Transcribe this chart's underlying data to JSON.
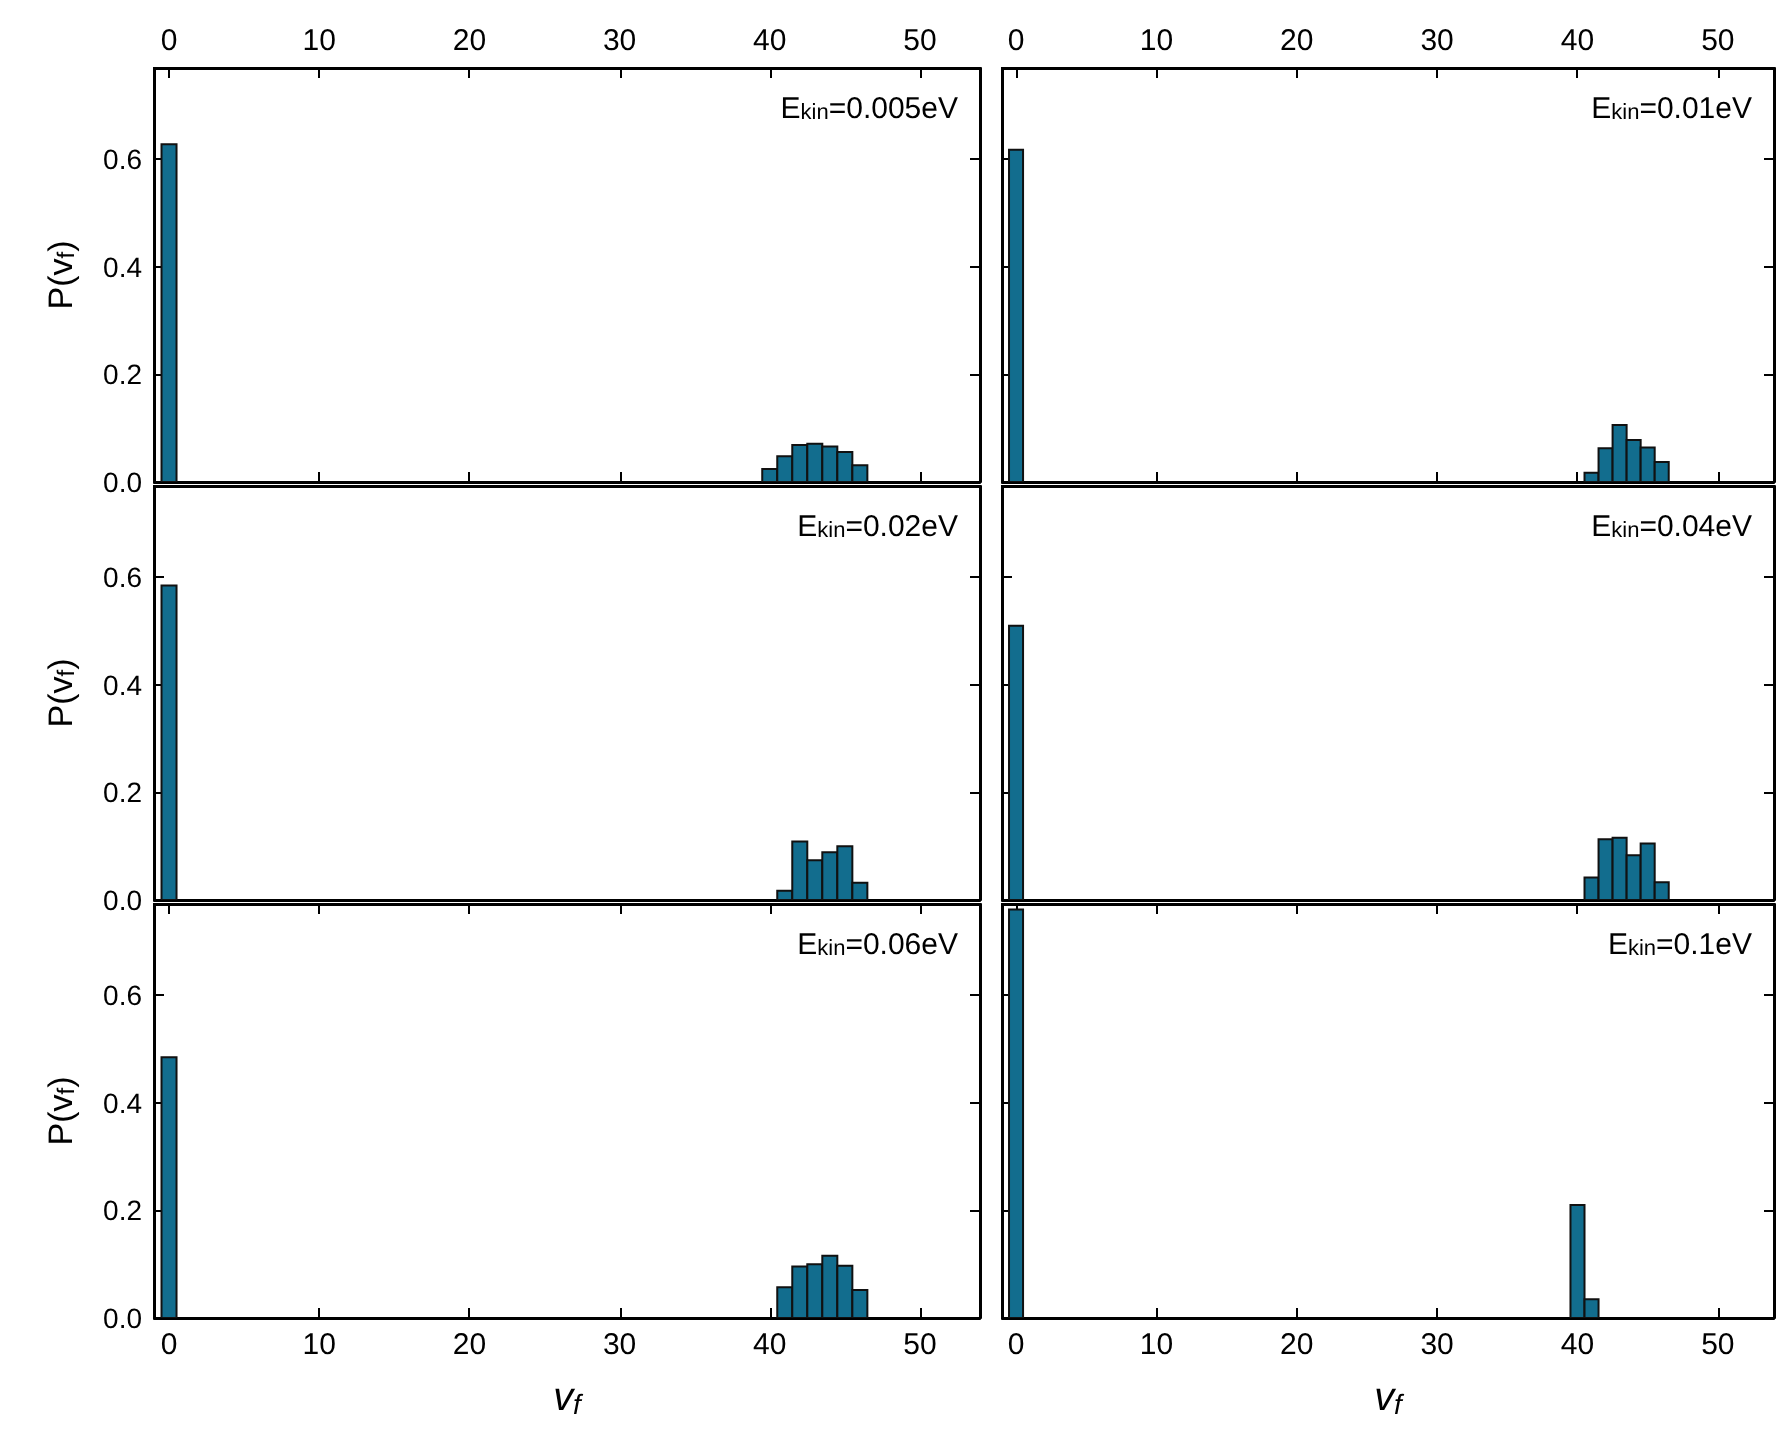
{
  "chart_data": [
    {
      "type": "histogram",
      "title": "E$_{kin}$=0.005eV",
      "ylabel": "P(v$_{f}$)",
      "color": "#126d8e",
      "bins": [
        -0.5,
        0.5,
        1.5,
        2.5,
        3.5,
        4.5,
        5.5,
        6.5,
        7.5,
        8.5,
        9.5,
        10.5,
        11.5,
        12.5,
        13.5,
        14.5,
        15.5,
        16.5,
        17.5,
        18.5,
        19.5,
        20.5,
        21.5,
        22.5,
        23.5,
        24.5,
        25.5,
        26.5,
        27.5,
        28.5,
        29.5,
        30.5,
        31.5,
        32.5,
        33.5,
        34.5,
        35.5,
        36.5,
        37.5,
        38.5,
        39.5,
        40.5,
        41.5,
        42.5,
        43.5,
        44.5,
        45.5,
        46.5
      ],
      "values": [
        0.628,
        0,
        0,
        0,
        0,
        0,
        0,
        0,
        0,
        0,
        0,
        0,
        0,
        0,
        0,
        0,
        0,
        0,
        0,
        0,
        0,
        0,
        0,
        0,
        0,
        0,
        0,
        0,
        0,
        0,
        0,
        0,
        0,
        0,
        0,
        0,
        0,
        0,
        0,
        0,
        0.024,
        0.048,
        0.069,
        0.071,
        0.066,
        0.056,
        0.031
      ],
      "xlim": [
        -1,
        54
      ],
      "x2lim": [
        -1,
        54
      ],
      "x2ticks": [
        0,
        10,
        20,
        30,
        40,
        50
      ],
      "ylim": [
        0,
        0.77
      ],
      "yticks": [
        {
          "value": 0,
          "label": "0.0"
        },
        {
          "value": 0.2,
          "label": "0.2"
        },
        {
          "value": 0.4,
          "label": "0.4"
        },
        {
          "value": 0.6,
          "label": "0.6"
        }
      ],
      "tick_labels": "y",
      "grid": false
    },
    {
      "type": "histogram",
      "title": "E$_{kin}$=0.01eV",
      "color": "#126d8e",
      "bins": [
        -0.5,
        0.5,
        1.5,
        2.5,
        3.5,
        4.5,
        5.5,
        6.5,
        7.5,
        8.5,
        9.5,
        10.5,
        11.5,
        12.5,
        13.5,
        14.5,
        15.5,
        16.5,
        17.5,
        18.5,
        19.5,
        20.5,
        21.5,
        22.5,
        23.5,
        24.5,
        25.5,
        26.5,
        27.5,
        28.5,
        29.5,
        30.5,
        31.5,
        32.5,
        33.5,
        34.5,
        35.5,
        36.5,
        37.5,
        38.5,
        39.5,
        40.5,
        41.5,
        42.5,
        43.5,
        44.5,
        45.5,
        46.5
      ],
      "values": [
        0.618,
        0,
        0,
        0,
        0,
        0,
        0,
        0,
        0,
        0,
        0,
        0,
        0,
        0,
        0,
        0,
        0,
        0,
        0,
        0,
        0,
        0,
        0,
        0,
        0,
        0,
        0,
        0,
        0,
        0,
        0,
        0,
        0,
        0,
        0,
        0,
        0,
        0,
        0,
        0,
        0,
        0.017,
        0.063,
        0.106,
        0.078,
        0.064,
        0.037
      ],
      "xlim": [
        -1,
        54
      ],
      "x2lim": [
        -1,
        54
      ],
      "x2ticks": [
        0,
        10,
        20,
        30,
        40,
        50
      ],
      "ylim": [
        0,
        0.77
      ],
      "yticks": [
        0,
        0.2,
        0.4,
        0.6
      ],
      "tick_labels": false,
      "grid": false
    },
    {
      "type": "histogram",
      "title": "E$_{kin}$=0.02eV",
      "ylabel": "P(v$_{f}$)",
      "color": "#126d8e",
      "bins": [
        -0.5,
        0.5,
        1.5,
        2.5,
        3.5,
        4.5,
        5.5,
        6.5,
        7.5,
        8.5,
        9.5,
        10.5,
        11.5,
        12.5,
        13.5,
        14.5,
        15.5,
        16.5,
        17.5,
        18.5,
        19.5,
        20.5,
        21.5,
        22.5,
        23.5,
        24.5,
        25.5,
        26.5,
        27.5,
        28.5,
        29.5,
        30.5,
        31.5,
        32.5,
        33.5,
        34.5,
        35.5,
        36.5,
        37.5,
        38.5,
        39.5,
        40.5,
        41.5,
        42.5,
        43.5,
        44.5,
        45.5,
        46.5
      ],
      "values": [
        0.585,
        0,
        0,
        0,
        0,
        0,
        0,
        0,
        0,
        0,
        0,
        0,
        0,
        0,
        0,
        0,
        0,
        0,
        0,
        0,
        0,
        0,
        0,
        0,
        0,
        0,
        0,
        0,
        0,
        0,
        0,
        0,
        0,
        0,
        0,
        0,
        0,
        0,
        0,
        0,
        0,
        0.017,
        0.109,
        0.074,
        0.089,
        0.1,
        0.032
      ],
      "xlim": [
        -1,
        54
      ],
      "ylim": [
        0,
        0.77
      ],
      "yticks": [
        {
          "value": 0,
          "label": "0.0"
        },
        {
          "value": 0.2,
          "label": "0.2"
        },
        {
          "value": 0.4,
          "label": "0.4"
        },
        {
          "value": 0.6,
          "label": "0.6"
        }
      ],
      "tick_labels": "y",
      "grid": false
    },
    {
      "type": "histogram",
      "title": "E$_{kin}$=0.04eV",
      "color": "#126d8e",
      "bins": [
        -0.5,
        0.5,
        1.5,
        2.5,
        3.5,
        4.5,
        5.5,
        6.5,
        7.5,
        8.5,
        9.5,
        10.5,
        11.5,
        12.5,
        13.5,
        14.5,
        15.5,
        16.5,
        17.5,
        18.5,
        19.5,
        20.5,
        21.5,
        22.5,
        23.5,
        24.5,
        25.5,
        26.5,
        27.5,
        28.5,
        29.5,
        30.5,
        31.5,
        32.5,
        33.5,
        34.5,
        35.5,
        36.5,
        37.5,
        38.5,
        39.5,
        40.5,
        41.5,
        42.5,
        43.5,
        44.5,
        45.5,
        46.5
      ],
      "values": [
        0.51,
        0,
        0,
        0,
        0,
        0,
        0,
        0,
        0,
        0,
        0,
        0,
        0,
        0,
        0,
        0,
        0,
        0,
        0,
        0,
        0,
        0,
        0,
        0,
        0,
        0,
        0,
        0,
        0,
        0,
        0,
        0,
        0,
        0,
        0,
        0,
        0,
        0,
        0,
        0,
        0,
        0.042,
        0.113,
        0.116,
        0.083,
        0.105,
        0.033
      ],
      "xlim": [
        -1,
        54
      ],
      "ylim": [
        0,
        0.77
      ],
      "yticks": [
        0,
        0.2,
        0.4,
        0.6
      ],
      "tick_labels": false,
      "grid": false
    },
    {
      "type": "histogram",
      "title": "E$_{kin}$=0.06eV",
      "xlabel": "v$_{f}$",
      "ylabel": "P(v$_{f}$)",
      "color": "#126d8e",
      "bins": [
        -0.5,
        0.5,
        1.5,
        2.5,
        3.5,
        4.5,
        5.5,
        6.5,
        7.5,
        8.5,
        9.5,
        10.5,
        11.5,
        12.5,
        13.5,
        14.5,
        15.5,
        16.5,
        17.5,
        18.5,
        19.5,
        20.5,
        21.5,
        22.5,
        23.5,
        24.5,
        25.5,
        26.5,
        27.5,
        28.5,
        29.5,
        30.5,
        31.5,
        32.5,
        33.5,
        34.5,
        35.5,
        36.5,
        37.5,
        38.5,
        39.5,
        40.5,
        41.5,
        42.5,
        43.5,
        44.5,
        45.5,
        46.5
      ],
      "values": [
        0.485,
        0,
        0,
        0,
        0,
        0,
        0,
        0,
        0,
        0,
        0,
        0,
        0,
        0,
        0,
        0,
        0,
        0,
        0,
        0,
        0,
        0,
        0,
        0,
        0,
        0,
        0,
        0,
        0,
        0,
        0,
        0,
        0,
        0,
        0,
        0,
        0,
        0,
        0,
        0,
        0,
        0.057,
        0.096,
        0.1,
        0.116,
        0.097,
        0.052
      ],
      "xlim": [
        -1,
        54
      ],
      "xticks": [
        0,
        10,
        20,
        30,
        40,
        50
      ],
      "ylim": [
        0,
        0.77
      ],
      "yticks": [
        {
          "value": 0,
          "label": "0.0"
        },
        {
          "value": 0.2,
          "label": "0.2"
        },
        {
          "value": 0.4,
          "label": "0.4"
        },
        {
          "value": 0.6,
          "label": "0.6"
        }
      ],
      "grid": false
    },
    {
      "type": "histogram",
      "title": "E$_{kin}$=0.1eV",
      "xlabel": "v$_{f}$",
      "color": "#126d8e",
      "bins": [
        -0.5,
        0.5,
        1.5,
        2.5,
        3.5,
        4.5,
        5.5,
        6.5,
        7.5,
        8.5,
        9.5,
        10.5,
        11.5,
        12.5,
        13.5,
        14.5,
        15.5,
        16.5,
        17.5,
        18.5,
        19.5,
        20.5,
        21.5,
        22.5,
        23.5,
        24.5,
        25.5,
        26.5,
        27.5,
        28.5,
        29.5,
        30.5,
        31.5,
        32.5,
        33.5,
        34.5,
        35.5,
        36.5,
        37.5,
        38.5,
        39.5,
        40.5,
        41.5
      ],
      "values": [
        0.76,
        0,
        0,
        0,
        0,
        0,
        0,
        0,
        0,
        0,
        0,
        0,
        0,
        0,
        0,
        0,
        0,
        0,
        0,
        0,
        0,
        0,
        0,
        0,
        0,
        0,
        0,
        0,
        0,
        0,
        0,
        0,
        0,
        0,
        0,
        0,
        0,
        0,
        0,
        0,
        0.21,
        0.035
      ],
      "xlim": [
        -1,
        54
      ],
      "xticks": [
        0,
        10,
        20,
        30,
        40,
        50
      ],
      "ylim": [
        0,
        0.77
      ],
      "yticks": [
        0,
        0.2,
        0.4,
        0.6
      ],
      "tick_labels": "x",
      "grid": false
    }
  ]
}
